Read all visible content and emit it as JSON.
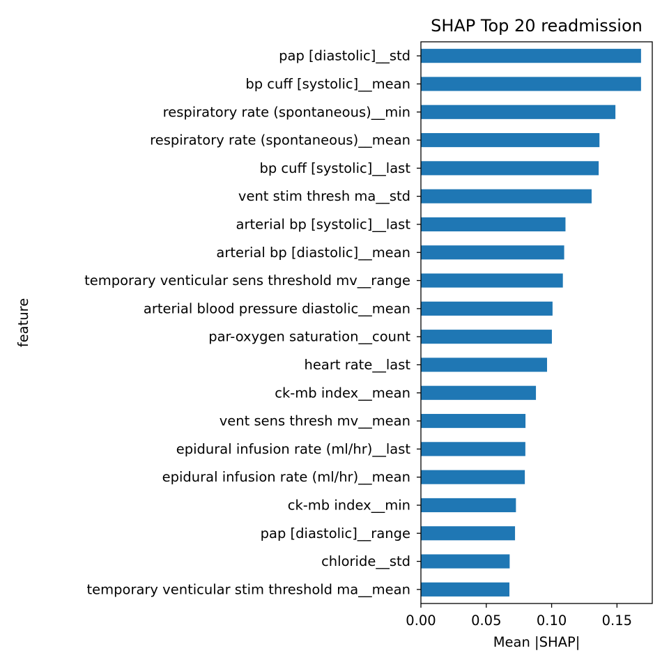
{
  "chart_data": {
    "type": "bar",
    "orientation": "horizontal",
    "title": "SHAP Top 20 readmission",
    "xlabel": "Mean |SHAP|",
    "ylabel": "feature",
    "xlim": [
      0,
      0.177
    ],
    "xticks": [
      0.0,
      0.05,
      0.1,
      0.15
    ],
    "xtick_labels": [
      "0.00",
      "0.05",
      "0.10",
      "0.15"
    ],
    "grid": false,
    "legend": "none",
    "bar_color": "#1f77b4",
    "categories": [
      "pap [diastolic]__std",
      "bp cuff [systolic]__mean",
      "respiratory rate (spontaneous)__min",
      "respiratory rate (spontaneous)__mean",
      "bp cuff [systolic]__last",
      "vent stim thresh ma__std",
      "arterial bp [systolic]__last",
      "arterial bp [diastolic]__mean",
      "temporary venticular sens threshold mv__range",
      "arterial blood pressure diastolic__mean",
      "par-oxygen saturation__count",
      "heart rate__last",
      "ck-mb index__mean",
      "vent sens thresh mv__mean",
      "epidural infusion rate (ml/hr)__last",
      "epidural infusion rate (ml/hr)__mean",
      "ck-mb index__min",
      "pap [diastolic]__range",
      "chloride__std",
      "temporary venticular stim threshold ma__mean"
    ],
    "values": [
      0.1684,
      0.1684,
      0.1488,
      0.1366,
      0.136,
      0.1306,
      0.1106,
      0.1096,
      0.1086,
      0.1007,
      0.1002,
      0.0965,
      0.088,
      0.08,
      0.0799,
      0.0795,
      0.0727,
      0.072,
      0.0679,
      0.0677
    ]
  }
}
